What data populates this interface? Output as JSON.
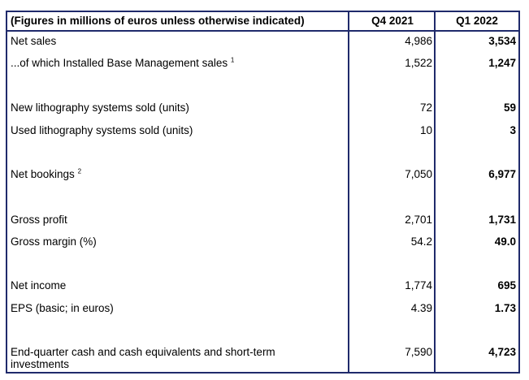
{
  "header": {
    "label": "(Figures in millions of euros unless otherwise indicated)",
    "col1": "Q4 2021",
    "col2": "Q1 2022"
  },
  "rows": [
    {
      "label": "Net sales",
      "sup": "",
      "q4": "4,986",
      "q1": "3,534"
    },
    {
      "label": "...of which Installed Base Management sales",
      "sup": "1",
      "q4": "1,522",
      "q1": "1,247"
    },
    {
      "label": "New lithography systems sold (units)",
      "sup": "",
      "q4": "72",
      "q1": "59"
    },
    {
      "label": "Used lithography systems sold (units)",
      "sup": "",
      "q4": "10",
      "q1": "3"
    },
    {
      "label": "Net bookings",
      "sup": "2",
      "q4": "7,050",
      "q1": "6,977"
    },
    {
      "label": "Gross profit",
      "sup": "",
      "q4": "2,701",
      "q1": "1,731"
    },
    {
      "label": "Gross margin (%)",
      "sup": "",
      "q4": "54.2",
      "q1": "49.0"
    },
    {
      "label": "Net income",
      "sup": "",
      "q4": "1,774",
      "q1": "695"
    },
    {
      "label": "EPS (basic; in euros)",
      "sup": "",
      "q4": "4.39",
      "q1": "1.73"
    },
    {
      "label": "End-quarter cash and cash equivalents and short-term investments",
      "sup": "",
      "q4": "7,590",
      "q1": "4,723"
    }
  ]
}
